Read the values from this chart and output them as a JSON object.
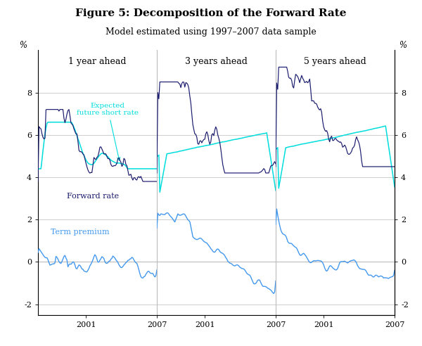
{
  "title": "Figure 5: Decomposition of the Forward Rate",
  "subtitle": "Model estimated using 1997–2007 data sample",
  "panel_titles": [
    "1 year ahead",
    "3 years ahead",
    "5 years ahead"
  ],
  "ylim": [
    -2.5,
    10.0
  ],
  "yticks": [
    -2,
    0,
    2,
    4,
    6,
    8
  ],
  "forward_rate_color": "#1a1a6e",
  "expected_rate_color": "#00dddd",
  "term_premium_color": "#4499ee",
  "background_color": "#ffffff",
  "grid_color": "#bbbbbb",
  "label_forward": "Forward rate",
  "label_expected": "Expected\nfuture short rate",
  "label_term": "Term premium"
}
